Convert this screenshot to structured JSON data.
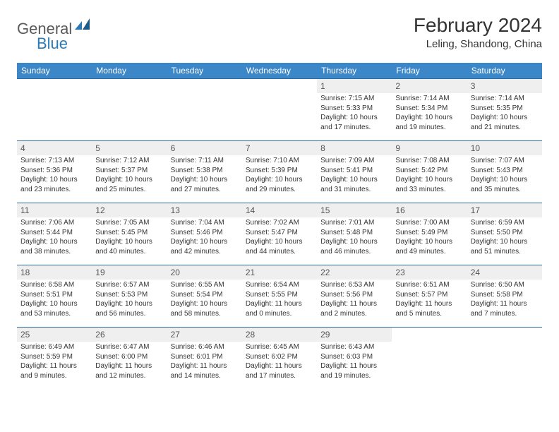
{
  "brand": {
    "part1": "General",
    "part2": "Blue"
  },
  "title": "February 2024",
  "location": "Leling, Shandong, China",
  "colors": {
    "header_bg": "#3b87c8",
    "rule": "#2a6aa0",
    "daynum_bg": "#efefef",
    "text": "#333333"
  },
  "fonts": {
    "title_size_pt": 21,
    "location_size_pt": 11,
    "dayheader_size_pt": 9,
    "cell_size_pt": 7.5
  },
  "day_headers": [
    "Sunday",
    "Monday",
    "Tuesday",
    "Wednesday",
    "Thursday",
    "Friday",
    "Saturday"
  ],
  "weeks": [
    [
      null,
      null,
      null,
      null,
      {
        "n": "1",
        "sunrise": "Sunrise: 7:15 AM",
        "sunset": "Sunset: 5:33 PM",
        "day1": "Daylight: 10 hours",
        "day2": "and 17 minutes."
      },
      {
        "n": "2",
        "sunrise": "Sunrise: 7:14 AM",
        "sunset": "Sunset: 5:34 PM",
        "day1": "Daylight: 10 hours",
        "day2": "and 19 minutes."
      },
      {
        "n": "3",
        "sunrise": "Sunrise: 7:14 AM",
        "sunset": "Sunset: 5:35 PM",
        "day1": "Daylight: 10 hours",
        "day2": "and 21 minutes."
      }
    ],
    [
      {
        "n": "4",
        "sunrise": "Sunrise: 7:13 AM",
        "sunset": "Sunset: 5:36 PM",
        "day1": "Daylight: 10 hours",
        "day2": "and 23 minutes."
      },
      {
        "n": "5",
        "sunrise": "Sunrise: 7:12 AM",
        "sunset": "Sunset: 5:37 PM",
        "day1": "Daylight: 10 hours",
        "day2": "and 25 minutes."
      },
      {
        "n": "6",
        "sunrise": "Sunrise: 7:11 AM",
        "sunset": "Sunset: 5:38 PM",
        "day1": "Daylight: 10 hours",
        "day2": "and 27 minutes."
      },
      {
        "n": "7",
        "sunrise": "Sunrise: 7:10 AM",
        "sunset": "Sunset: 5:39 PM",
        "day1": "Daylight: 10 hours",
        "day2": "and 29 minutes."
      },
      {
        "n": "8",
        "sunrise": "Sunrise: 7:09 AM",
        "sunset": "Sunset: 5:41 PM",
        "day1": "Daylight: 10 hours",
        "day2": "and 31 minutes."
      },
      {
        "n": "9",
        "sunrise": "Sunrise: 7:08 AM",
        "sunset": "Sunset: 5:42 PM",
        "day1": "Daylight: 10 hours",
        "day2": "and 33 minutes."
      },
      {
        "n": "10",
        "sunrise": "Sunrise: 7:07 AM",
        "sunset": "Sunset: 5:43 PM",
        "day1": "Daylight: 10 hours",
        "day2": "and 35 minutes."
      }
    ],
    [
      {
        "n": "11",
        "sunrise": "Sunrise: 7:06 AM",
        "sunset": "Sunset: 5:44 PM",
        "day1": "Daylight: 10 hours",
        "day2": "and 38 minutes."
      },
      {
        "n": "12",
        "sunrise": "Sunrise: 7:05 AM",
        "sunset": "Sunset: 5:45 PM",
        "day1": "Daylight: 10 hours",
        "day2": "and 40 minutes."
      },
      {
        "n": "13",
        "sunrise": "Sunrise: 7:04 AM",
        "sunset": "Sunset: 5:46 PM",
        "day1": "Daylight: 10 hours",
        "day2": "and 42 minutes."
      },
      {
        "n": "14",
        "sunrise": "Sunrise: 7:02 AM",
        "sunset": "Sunset: 5:47 PM",
        "day1": "Daylight: 10 hours",
        "day2": "and 44 minutes."
      },
      {
        "n": "15",
        "sunrise": "Sunrise: 7:01 AM",
        "sunset": "Sunset: 5:48 PM",
        "day1": "Daylight: 10 hours",
        "day2": "and 46 minutes."
      },
      {
        "n": "16",
        "sunrise": "Sunrise: 7:00 AM",
        "sunset": "Sunset: 5:49 PM",
        "day1": "Daylight: 10 hours",
        "day2": "and 49 minutes."
      },
      {
        "n": "17",
        "sunrise": "Sunrise: 6:59 AM",
        "sunset": "Sunset: 5:50 PM",
        "day1": "Daylight: 10 hours",
        "day2": "and 51 minutes."
      }
    ],
    [
      {
        "n": "18",
        "sunrise": "Sunrise: 6:58 AM",
        "sunset": "Sunset: 5:51 PM",
        "day1": "Daylight: 10 hours",
        "day2": "and 53 minutes."
      },
      {
        "n": "19",
        "sunrise": "Sunrise: 6:57 AM",
        "sunset": "Sunset: 5:53 PM",
        "day1": "Daylight: 10 hours",
        "day2": "and 56 minutes."
      },
      {
        "n": "20",
        "sunrise": "Sunrise: 6:55 AM",
        "sunset": "Sunset: 5:54 PM",
        "day1": "Daylight: 10 hours",
        "day2": "and 58 minutes."
      },
      {
        "n": "21",
        "sunrise": "Sunrise: 6:54 AM",
        "sunset": "Sunset: 5:55 PM",
        "day1": "Daylight: 11 hours",
        "day2": "and 0 minutes."
      },
      {
        "n": "22",
        "sunrise": "Sunrise: 6:53 AM",
        "sunset": "Sunset: 5:56 PM",
        "day1": "Daylight: 11 hours",
        "day2": "and 2 minutes."
      },
      {
        "n": "23",
        "sunrise": "Sunrise: 6:51 AM",
        "sunset": "Sunset: 5:57 PM",
        "day1": "Daylight: 11 hours",
        "day2": "and 5 minutes."
      },
      {
        "n": "24",
        "sunrise": "Sunrise: 6:50 AM",
        "sunset": "Sunset: 5:58 PM",
        "day1": "Daylight: 11 hours",
        "day2": "and 7 minutes."
      }
    ],
    [
      {
        "n": "25",
        "sunrise": "Sunrise: 6:49 AM",
        "sunset": "Sunset: 5:59 PM",
        "day1": "Daylight: 11 hours",
        "day2": "and 9 minutes."
      },
      {
        "n": "26",
        "sunrise": "Sunrise: 6:47 AM",
        "sunset": "Sunset: 6:00 PM",
        "day1": "Daylight: 11 hours",
        "day2": "and 12 minutes."
      },
      {
        "n": "27",
        "sunrise": "Sunrise: 6:46 AM",
        "sunset": "Sunset: 6:01 PM",
        "day1": "Daylight: 11 hours",
        "day2": "and 14 minutes."
      },
      {
        "n": "28",
        "sunrise": "Sunrise: 6:45 AM",
        "sunset": "Sunset: 6:02 PM",
        "day1": "Daylight: 11 hours",
        "day2": "and 17 minutes."
      },
      {
        "n": "29",
        "sunrise": "Sunrise: 6:43 AM",
        "sunset": "Sunset: 6:03 PM",
        "day1": "Daylight: 11 hours",
        "day2": "and 19 minutes."
      },
      null,
      null
    ]
  ]
}
